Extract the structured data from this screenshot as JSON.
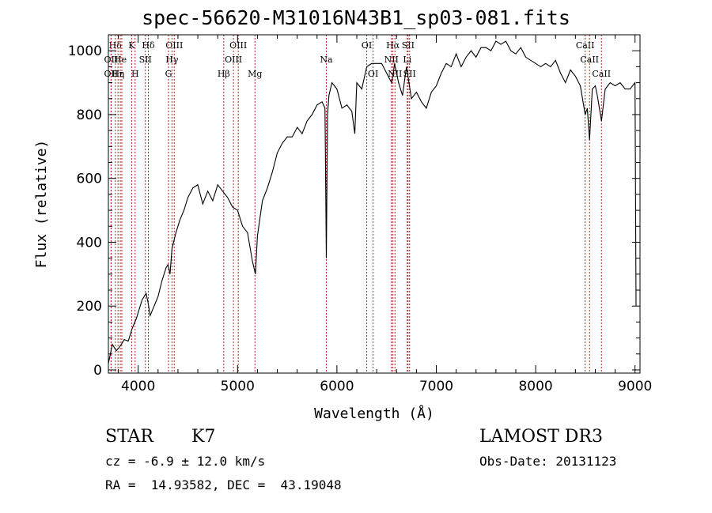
{
  "chart_data": {
    "type": "line",
    "title": "spec-56620-M31016N43B1_sp03-081.fits",
    "xlabel": "Wavelength (Å)",
    "ylabel": "Flux (relative)",
    "xlim": [
      3700,
      9050
    ],
    "ylim": [
      -10,
      1050
    ],
    "xticks": [
      4000,
      5000,
      6000,
      7000,
      8000,
      9000
    ],
    "yticks": [
      0,
      200,
      400,
      600,
      800,
      1000
    ],
    "grid": false,
    "line_color": "#000000",
    "marker_color": "#b22222",
    "series": [
      {
        "x": [
          3700,
          3740,
          3780,
          3820,
          3860,
          3900,
          3940,
          3980,
          4000,
          4040,
          4080,
          4100,
          4120,
          4160,
          4200,
          4240,
          4280,
          4300,
          4320,
          4340,
          4380,
          4420,
          4460,
          4500,
          4550,
          4600,
          4650,
          4700,
          4750,
          4800,
          4850,
          4900,
          4950,
          5000,
          5050,
          5100,
          5150,
          5180,
          5200,
          5250,
          5300,
          5350,
          5400,
          5450,
          5500,
          5550,
          5600,
          5650,
          5700,
          5750,
          5800,
          5850,
          5880,
          5893,
          5905,
          5920,
          5950,
          6000,
          6050,
          6100,
          6150,
          6180,
          6200,
          6250,
          6300,
          6350,
          6400,
          6450,
          6500,
          6550,
          6563,
          6580,
          6620,
          6660,
          6700,
          6750,
          6800,
          6850,
          6900,
          6950,
          7000,
          7050,
          7100,
          7150,
          7200,
          7250,
          7300,
          7350,
          7400,
          7450,
          7500,
          7550,
          7600,
          7650,
          7700,
          7750,
          7800,
          7850,
          7900,
          7950,
          8000,
          8050,
          8100,
          8150,
          8200,
          8250,
          8300,
          8350,
          8400,
          8450,
          8498,
          8520,
          8542,
          8570,
          8600,
          8620,
          8662,
          8700,
          8750,
          8800,
          8850,
          8900,
          8950,
          9000,
          9010
        ],
        "y": [
          20,
          80,
          60,
          75,
          95,
          90,
          130,
          160,
          180,
          220,
          240,
          210,
          170,
          200,
          230,
          280,
          320,
          330,
          300,
          380,
          430,
          470,
          500,
          540,
          570,
          580,
          520,
          560,
          530,
          580,
          560,
          540,
          510,
          500,
          450,
          430,
          340,
          300,
          420,
          530,
          570,
          620,
          680,
          710,
          730,
          730,
          760,
          740,
          780,
          800,
          830,
          840,
          820,
          350,
          800,
          860,
          900,
          880,
          820,
          830,
          810,
          740,
          900,
          880,
          950,
          960,
          960,
          960,
          930,
          900,
          920,
          960,
          900,
          860,
          950,
          850,
          870,
          840,
          820,
          870,
          890,
          930,
          960,
          950,
          990,
          950,
          980,
          1000,
          980,
          1010,
          1010,
          1000,
          1030,
          1020,
          1030,
          1000,
          990,
          1010,
          980,
          970,
          960,
          950,
          960,
          950,
          970,
          930,
          900,
          940,
          920,
          890,
          800,
          820,
          720,
          880,
          890,
          860,
          780,
          880,
          900,
          890,
          900,
          880,
          880,
          900,
          200
        ]
      }
    ],
    "lines": [
      {
        "label": "Hδ",
        "x": 3770,
        "row": 0
      },
      {
        "label": "OII",
        "x": 3727,
        "row": 1
      },
      {
        "label": "OII",
        "x": 3727,
        "row": 2
      },
      {
        "label": "Hε",
        "x": 3797,
        "row": 2
      },
      {
        "label": "He",
        "x": 3820,
        "row": 1
      },
      {
        "label": "K",
        "x": 3934,
        "row": 0
      },
      {
        "label": "η",
        "x": 3835,
        "row": 2
      },
      {
        "label": "H",
        "x": 3969,
        "row": 2
      },
      {
        "label": "Hδ",
        "x": 4102,
        "row": 0
      },
      {
        "label": "SII",
        "x": 4072,
        "row": 1
      },
      {
        "label": "OIII",
        "x": 4363,
        "row": 0
      },
      {
        "label": "Hγ",
        "x": 4340,
        "row": 1
      },
      {
        "label": "G",
        "x": 4305,
        "row": 2
      },
      {
        "label": "OIII",
        "x": 5007,
        "row": 0
      },
      {
        "label": "OIII",
        "x": 4959,
        "row": 1
      },
      {
        "label": "Hβ",
        "x": 4861,
        "row": 2
      },
      {
        "label": "Mg",
        "x": 5175,
        "row": 2
      },
      {
        "label": "Na",
        "x": 5893,
        "row": 1
      },
      {
        "label": "OI",
        "x": 6300,
        "row": 0
      },
      {
        "label": "OI",
        "x": 6364,
        "row": 2
      },
      {
        "label": "Hα",
        "x": 6563,
        "row": 0
      },
      {
        "label": "SII",
        "x": 6716,
        "row": 0
      },
      {
        "label": "NII",
        "x": 6548,
        "row": 1
      },
      {
        "label": "Li",
        "x": 6708,
        "row": 1
      },
      {
        "label": "NII",
        "x": 6584,
        "row": 2
      },
      {
        "label": "SII",
        "x": 6731,
        "row": 2
      },
      {
        "label": "CaII",
        "x": 8498,
        "row": 0
      },
      {
        "label": "CaII",
        "x": 8542,
        "row": 1
      },
      {
        "label": "CaII",
        "x": 8662,
        "row": 2
      }
    ]
  },
  "info": {
    "class": "STAR",
    "subclass": "K7",
    "survey": "LAMOST DR3",
    "cz": "cz = -6.9 ± 12.0 km/s",
    "obs_date": "Obs-Date: 20131123",
    "radec": "RA =  14.93582, DEC =  43.19048"
  }
}
